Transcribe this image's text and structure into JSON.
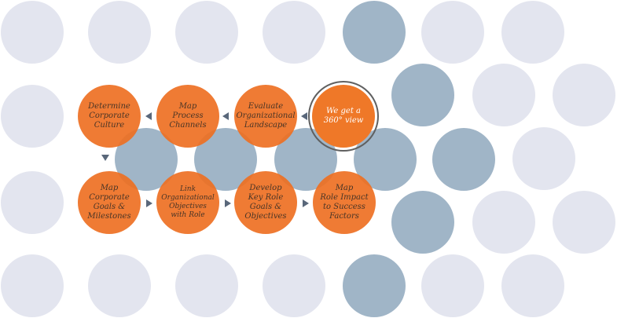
{
  "colors": {
    "accent_orange": "#ee7023",
    "circle_blue": "#a0b5c7",
    "circle_light": "#e3e5ef",
    "arrow": "#59677a"
  },
  "center": {
    "label": "We get a\n360° view"
  },
  "steps": [
    {
      "label": "Determine\nCorporate\nCulture"
    },
    {
      "label": "Map\nProcess\nChannels"
    },
    {
      "label": "Evaluate\nOrganizational\nLandscape"
    },
    {
      "label": "Map\nCorporate\nGoals &\nMilestones"
    },
    {
      "label": "Link\nOrganizational\nObjectives\nwith Role"
    },
    {
      "label": "Develop\nKey Role\nGoals &\nObjectives"
    },
    {
      "label": "Map\nRole Impact\nto Success\nFactors"
    }
  ]
}
